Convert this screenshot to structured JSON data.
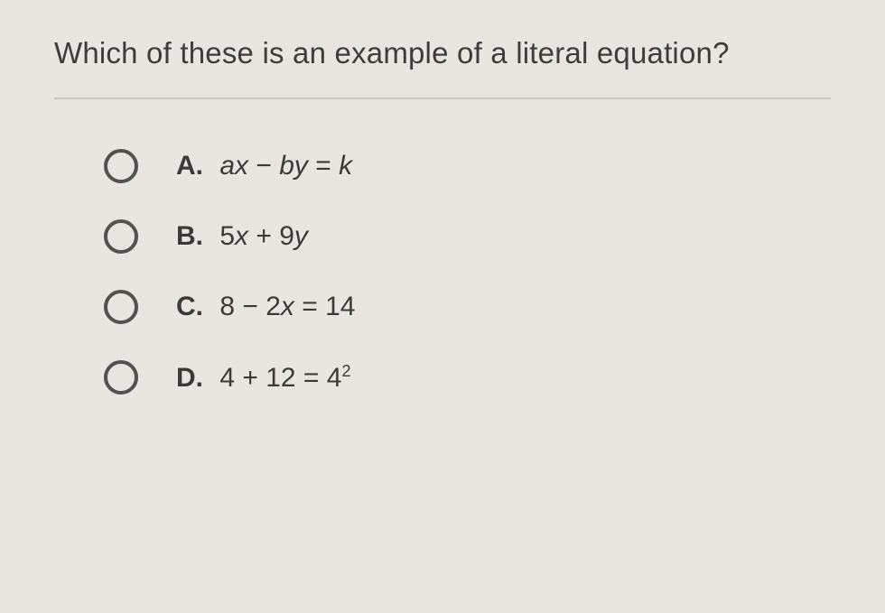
{
  "question": "Which of these is an example of a literal equation?",
  "colors": {
    "background": "#e8e6e1",
    "text": "#3a3a38",
    "divider": "#c9c7c2",
    "radio_border": "#525250"
  },
  "typography": {
    "question_fontsize": 33,
    "answer_fontsize": 30,
    "font_family": "Arial"
  },
  "options": [
    {
      "letter": "A.",
      "expression_html": "<i>ax</i> − <i>by</i> = <i>k</i>"
    },
    {
      "letter": "B.",
      "expression_html": "<span class='num'>5</span><i>x</i> + <span class='num'>9</span><i>y</i>"
    },
    {
      "letter": "C.",
      "expression_html": "<span class='num'>8 − 2</span><i>x</i> <span class='num'>= 14</span>"
    },
    {
      "letter": "D.",
      "expression_html": "<span class='num'>4 + 12 = 4</span><sup>2</sup>"
    }
  ]
}
